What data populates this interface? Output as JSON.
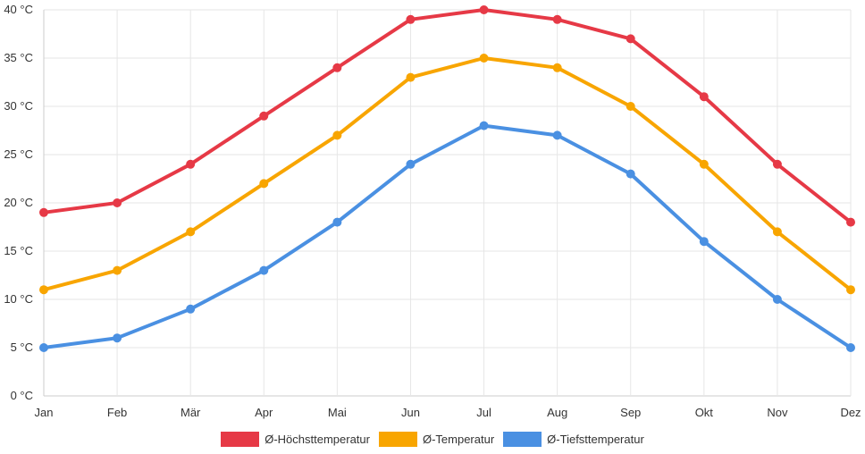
{
  "chart_data": {
    "type": "line",
    "categories": [
      "Jan",
      "Feb",
      "Mär",
      "Apr",
      "Mai",
      "Jun",
      "Jul",
      "Aug",
      "Sep",
      "Okt",
      "Nov",
      "Dez"
    ],
    "ylim": [
      0,
      40
    ],
    "yticks": [
      0,
      5,
      10,
      15,
      20,
      25,
      30,
      35,
      40
    ],
    "yunit": " °C",
    "grid": true,
    "legend_position": "bottom",
    "series": [
      {
        "name": "Ø-Höchsttemperatur",
        "color": "#e63946",
        "values": [
          19,
          20,
          24,
          29,
          34,
          39,
          40,
          39,
          37,
          31,
          24,
          18
        ]
      },
      {
        "name": "Ø-Temperatur",
        "color": "#f8a500",
        "values": [
          11,
          13,
          17,
          22,
          27,
          33,
          35,
          34,
          30,
          24,
          17,
          11
        ]
      },
      {
        "name": "Ø-Tiefsttemperatur",
        "color": "#4a90e2",
        "values": [
          5,
          6,
          9,
          13,
          18,
          24,
          28,
          27,
          23,
          16,
          10,
          5
        ]
      }
    ]
  }
}
